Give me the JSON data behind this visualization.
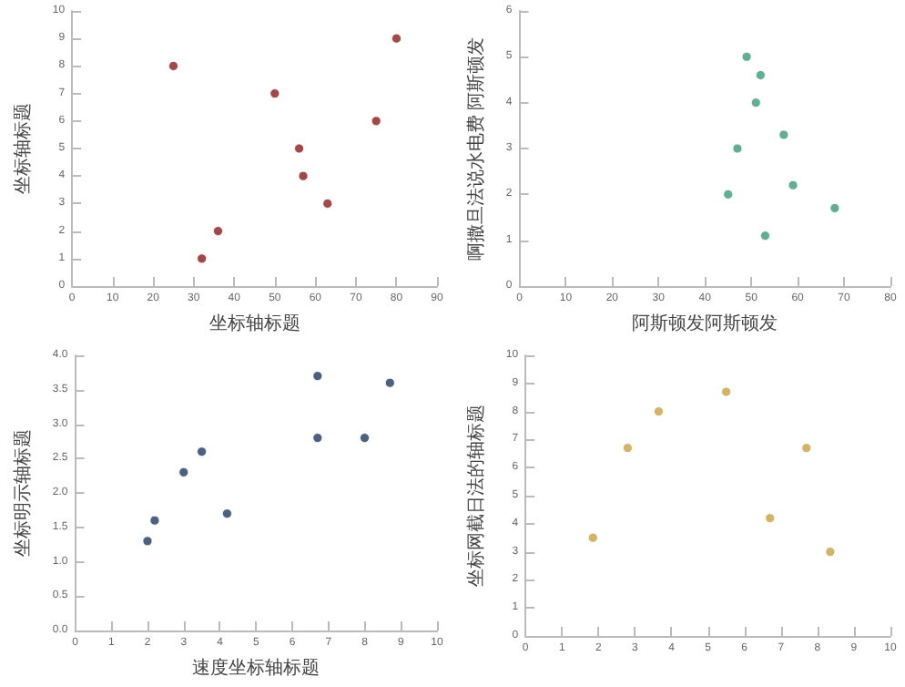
{
  "chart_data": [
    {
      "type": "scatter",
      "xlabel": "坐标轴标题",
      "ylabel": "坐标轴标题",
      "x": [
        25,
        32,
        36,
        50,
        56,
        57,
        63,
        75,
        80
      ],
      "series": [
        {
          "color": "#8b1a1a",
          "values": [
            8,
            1,
            2,
            7,
            5,
            4,
            3,
            6,
            9
          ]
        }
      ],
      "xlim": [
        0,
        90
      ],
      "xticks": [
        0,
        10,
        20,
        30,
        40,
        50,
        60,
        70,
        80,
        90
      ],
      "ylim": [
        0,
        10
      ],
      "yticks": [
        0,
        1,
        2,
        3,
        4,
        5,
        6,
        7,
        8,
        9,
        10
      ],
      "grid": false,
      "marker": "circle"
    },
    {
      "type": "scatter",
      "xlabel": "阿斯顿发阿斯顿发",
      "ylabel": "啊撒旦法说水电费 阿斯顿发",
      "x": [
        49,
        52,
        51,
        57,
        47,
        59,
        45,
        68,
        53
      ],
      "series": [
        {
          "color": "#3a9a7a",
          "values": [
            5,
            4.6,
            4,
            3.3,
            3,
            2.2,
            2,
            1.7,
            1.1
          ]
        }
      ],
      "xlim": [
        0,
        80
      ],
      "xticks": [
        0,
        10,
        20,
        30,
        40,
        50,
        60,
        70,
        80
      ],
      "ylim": [
        0,
        6
      ],
      "yticks": [
        0,
        1,
        2,
        3,
        4,
        5,
        6
      ],
      "grid": false,
      "marker": "circle"
    },
    {
      "type": "scatter",
      "xlabel": "速度坐标轴标题",
      "ylabel": "坐标明示轴标题",
      "x": [
        2,
        2.2,
        3,
        3.5,
        4.2,
        6.7,
        6.7,
        8,
        8.7
      ],
      "series": [
        {
          "color": "#1f3a5f",
          "values": [
            1.3,
            1.6,
            2.3,
            2.6,
            1.7,
            3.7,
            2.8,
            2.8,
            3.6
          ]
        }
      ],
      "xlim": [
        0,
        10
      ],
      "xticks": [
        0,
        1,
        2,
        3,
        4,
        5,
        6,
        7,
        8,
        9,
        10
      ],
      "ylim": [
        0,
        4
      ],
      "yticks": [
        {
          "value": 0,
          "label": "0.0"
        },
        {
          "value": 0.5,
          "label": "0.5"
        },
        {
          "value": 1,
          "label": "1.0"
        },
        {
          "value": 1.5,
          "label": "1.5"
        },
        {
          "value": 2,
          "label": "2.0"
        },
        {
          "value": 2.5,
          "label": "2.5"
        },
        {
          "value": 3,
          "label": "3.0"
        },
        {
          "value": 3.5,
          "label": "3.5"
        },
        {
          "value": 4,
          "label": "4.0"
        }
      ],
      "grid": false,
      "marker": "circle"
    },
    {
      "type": "scatter",
      "ylabel": "坐标网截日法的轴标题",
      "x": [
        1.85,
        2.8,
        3.65,
        5.5,
        6.7,
        7.7,
        8.35
      ],
      "series": [
        {
          "color": "#c8a040",
          "values": [
            3.5,
            6.7,
            8,
            8.7,
            4.2,
            6.7,
            3
          ]
        }
      ],
      "xlim": [
        0,
        10
      ],
      "xticks": [
        0,
        1,
        2,
        3,
        4,
        5,
        6,
        7,
        8,
        9,
        10
      ],
      "ylim": [
        0,
        10
      ],
      "yticks": [
        0,
        1,
        2,
        3,
        4,
        5,
        6,
        7,
        8,
        9,
        10
      ],
      "grid": false,
      "marker": "circle"
    }
  ]
}
